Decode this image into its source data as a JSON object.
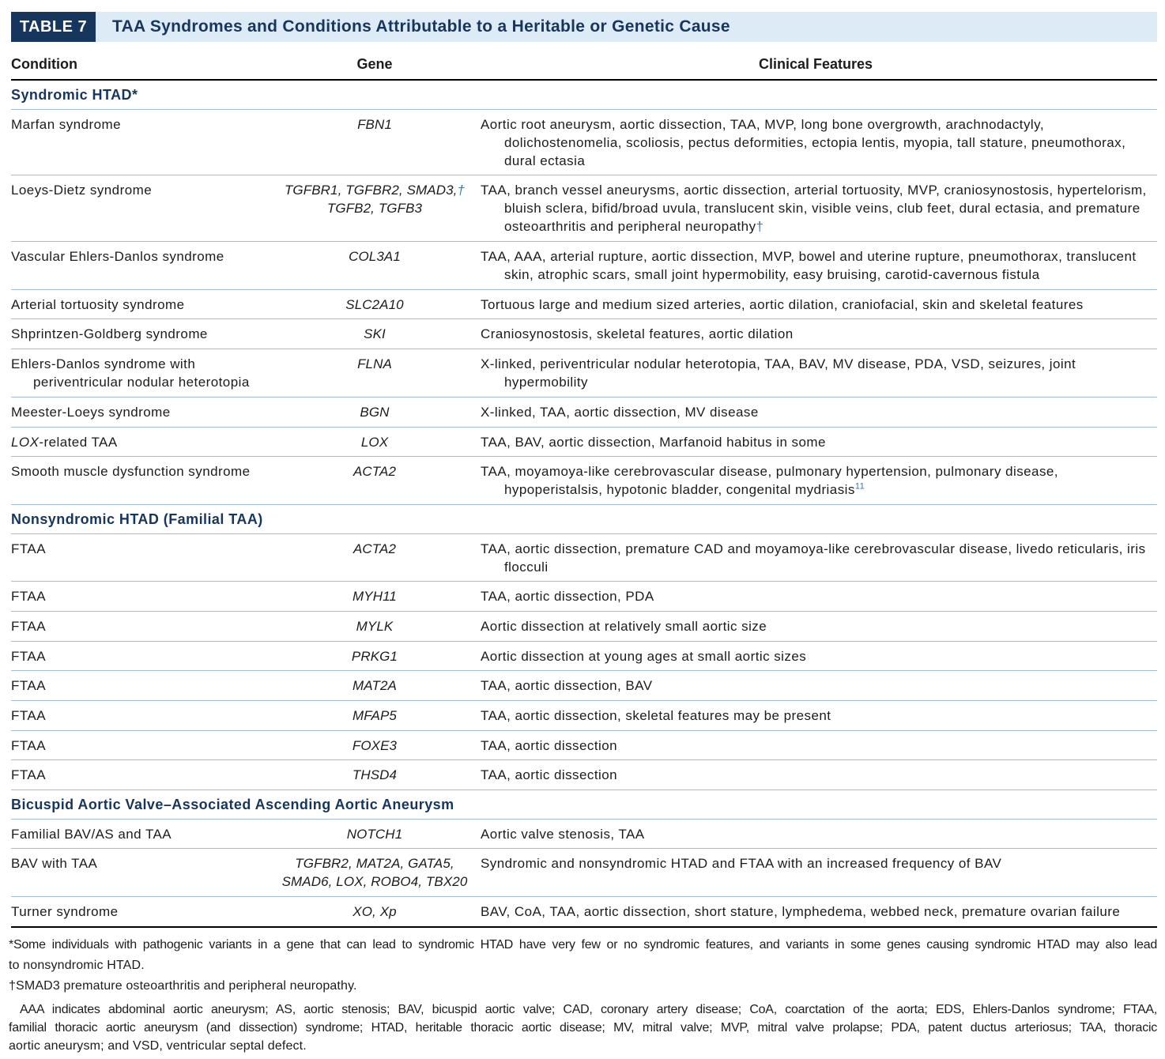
{
  "colors": {
    "navy": "#17365d",
    "strip": "#dcebf5",
    "rule": "#a3bdd6",
    "accent": "#2b7bba"
  },
  "header": {
    "label": "TABLE 7",
    "title": "TAA Syndromes and Conditions Attributable to a Heritable or Genetic Cause"
  },
  "table": {
    "columns": [
      "Condition",
      "Gene",
      "Clinical Features"
    ],
    "rows": [
      {
        "section": "Syndromic HTAD*"
      },
      {
        "condition": "Marfan syndrome",
        "gene": "FBN1",
        "clinical": [
          "Aortic root aneurysm, aortic dissection, TAA, MVP, long bone overgrowth, arachnodactyly,",
          "dolichostenomelia, scoliosis, pectus deformities, ectopia lentis, myopia, tall stature, pneumothorax,",
          "dural ectasia"
        ]
      },
      {
        "condition": "Loeys-Dietz syndrome",
        "gene": [
          "TGFBR1, TGFBR2, SMAD3,†",
          "TGFB2, TGFB3"
        ],
        "clinical": [
          "TAA, branch vessel aneurysms, aortic dissection, arterial tortuosity, MVP, craniosynostosis, hypertelorism,",
          "bluish sclera, bifid/broad uvula, translucent skin, visible veins, club feet, dural ectasia, and premature",
          "osteoarthritis and peripheral neuropathy†"
        ]
      },
      {
        "condition": "Vascular Ehlers-Danlos syndrome",
        "gene": "COL3A1",
        "clinical": [
          "TAA, AAA, arterial rupture, aortic dissection, MVP, bowel and uterine rupture, pneumothorax, translucent",
          "skin, atrophic scars, small joint hypermobility, easy bruising, carotid-cavernous fistula"
        ]
      },
      {
        "condition": "Arterial tortuosity syndrome",
        "gene": "SLC2A10",
        "clinical": [
          "Tortuous large and medium sized arteries, aortic dilation, craniofacial, skin and skeletal features"
        ]
      },
      {
        "condition": "Shprintzen-Goldberg syndrome",
        "gene": "SKI",
        "clinical": [
          "Craniosynostosis, skeletal features, aortic dilation"
        ]
      },
      {
        "condition": [
          "Ehlers-Danlos syndrome with",
          "periventricular nodular heterotopia"
        ],
        "gene": "FLNA",
        "clinical": [
          "X-linked, periventricular nodular heterotopia, TAA, BAV, MV disease, PDA, VSD, seizures, joint",
          "hypermobility"
        ]
      },
      {
        "condition": "Meester-Loeys syndrome",
        "gene": "BGN",
        "clinical": [
          "X-linked, TAA, aortic dissection, MV disease"
        ]
      },
      {
        "condition": {
          "italic": "LOX",
          "text": "-related TAA"
        },
        "gene": "LOX",
        "clinical": [
          "TAA, BAV, aortic dissection, Marfanoid habitus in some"
        ]
      },
      {
        "condition": "Smooth muscle dysfunction syndrome",
        "gene": "ACTA2",
        "clinical": [
          "TAA, moyamoya-like cerebrovascular disease, pulmonary hypertension, pulmonary disease,",
          {
            "text": "hypoperistalsis, hypotonic bladder, congenital mydriasis",
            "sup": "11"
          }
        ]
      },
      {
        "section": "Nonsyndromic HTAD (Familial TAA)"
      },
      {
        "condition": "FTAA",
        "gene": "ACTA2",
        "clinical": [
          "TAA, aortic dissection, premature CAD and moyamoya-like cerebrovascular disease, livedo reticularis, iris",
          "flocculi"
        ]
      },
      {
        "condition": "FTAA",
        "gene": "MYH11",
        "clinical": [
          "TAA, aortic dissection, PDA"
        ]
      },
      {
        "condition": "FTAA",
        "gene": "MYLK",
        "clinical": [
          "Aortic dissection at relatively small aortic size"
        ]
      },
      {
        "condition": "FTAA",
        "gene": "PRKG1",
        "clinical": [
          "Aortic dissection at young ages at small aortic sizes"
        ]
      },
      {
        "condition": "FTAA",
        "gene": "MAT2A",
        "clinical": [
          "TAA, aortic dissection, BAV"
        ]
      },
      {
        "condition": "FTAA",
        "gene": "MFAP5",
        "clinical": [
          "TAA, aortic dissection, skeletal features may be present"
        ]
      },
      {
        "condition": "FTAA",
        "gene": "FOXE3",
        "clinical": [
          "TAA, aortic dissection"
        ]
      },
      {
        "condition": "FTAA",
        "gene": "THSD4",
        "clinical": [
          "TAA, aortic dissection"
        ]
      },
      {
        "section": "Bicuspid Aortic Valve–Associated Ascending Aortic Aneurysm"
      },
      {
        "condition": "Familial BAV/AS and TAA",
        "gene": "NOTCH1",
        "clinical": [
          "Aortic valve stenosis, TAA"
        ]
      },
      {
        "condition": "BAV with TAA",
        "gene": [
          "TGFBR2, MAT2A, GATA5,",
          "SMAD6, LOX, ROBO4, TBX20"
        ],
        "clinical": [
          "Syndromic and nonsyndromic HTAD and FTAA with an increased frequency of BAV"
        ]
      },
      {
        "condition": "Turner syndrome",
        "gene": "XO, Xp",
        "clinical": [
          "BAV, CoA, TAA, aortic dissection, short stature, lymphedema, webbed neck, premature ovarian failure"
        ]
      }
    ]
  },
  "footnotes": {
    "asterisk": [
      "*Some individuals with pathogenic variants in a gene that can lead to syndromic HTAD have very few or no syndromic features, and variants in some genes causing syndromic HTAD may also lead",
      "to nonsyndromic HTAD."
    ],
    "dagger": [
      "†SMAD3 premature osteoarthritis and peripheral neuropathy."
    ],
    "abbreviations": [
      "AAA indicates abdominal aortic aneurysm; AS, aortic stenosis; BAV, bicuspid aortic valve; CAD, coronary artery disease; CoA, coarctation of the aorta; EDS, Ehlers-Danlos syndrome; FTAA,",
      "familial thoracic aortic aneurysm (and dissection) syndrome; HTAD, heritable thoracic aortic disease; MV, mitral valve; MVP, mitral valve prolapse; PDA, patent ductus arteriosus; TAA, thoracic",
      "aortic aneurysm; and VSD, ventricular septal defect."
    ]
  }
}
